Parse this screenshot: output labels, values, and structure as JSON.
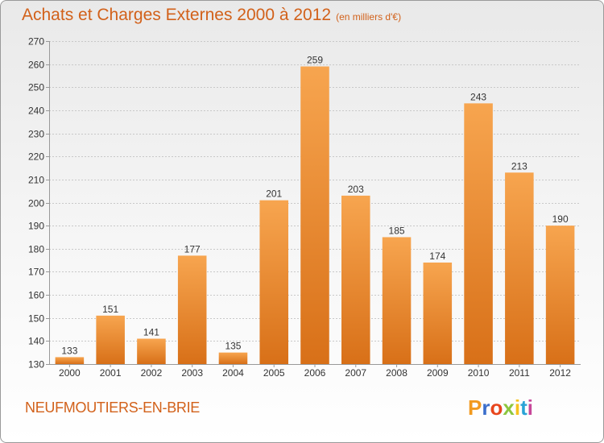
{
  "header": {
    "title": "Achats et Charges Externes 2000 à 2012",
    "subtitle": "(en milliers d'€)"
  },
  "footer": {
    "commune": "NEUFMOUTIERS-EN-BRIE",
    "logo_letters": [
      "P",
      "r",
      "o",
      "x",
      "i",
      "t",
      "i"
    ],
    "logo_colors": [
      "#f29a1f",
      "#3b6ecb",
      "#e8451c",
      "#8cc63f",
      "#f7c21d",
      "#2aa3d6",
      "#c7479a"
    ]
  },
  "colors": {
    "bar_top": "#f7a54f",
    "bar_bottom": "#d87018",
    "title": "#d2611a",
    "axis_text": "#333333"
  },
  "chart_data": {
    "type": "bar",
    "categories": [
      "2000",
      "2001",
      "2002",
      "2003",
      "2004",
      "2005",
      "2006",
      "2007",
      "2008",
      "2009",
      "2010",
      "2011",
      "2012"
    ],
    "values": [
      133,
      151,
      141,
      177,
      135,
      201,
      259,
      203,
      185,
      174,
      243,
      213,
      190
    ],
    "data_labels": [
      "133",
      "151",
      "141",
      "177",
      "135",
      "201",
      "259",
      "203",
      "185",
      "174",
      "243",
      "213",
      "190"
    ],
    "title": "Achats et Charges Externes 2000 à 2012",
    "subtitle": "(en milliers d'€)",
    "xlabel": "",
    "ylabel": "",
    "ylim": [
      130,
      270
    ],
    "yticks": [
      130,
      140,
      150,
      160,
      170,
      180,
      190,
      200,
      210,
      220,
      230,
      240,
      250,
      260,
      270
    ],
    "grid": true,
    "legend": "none"
  }
}
